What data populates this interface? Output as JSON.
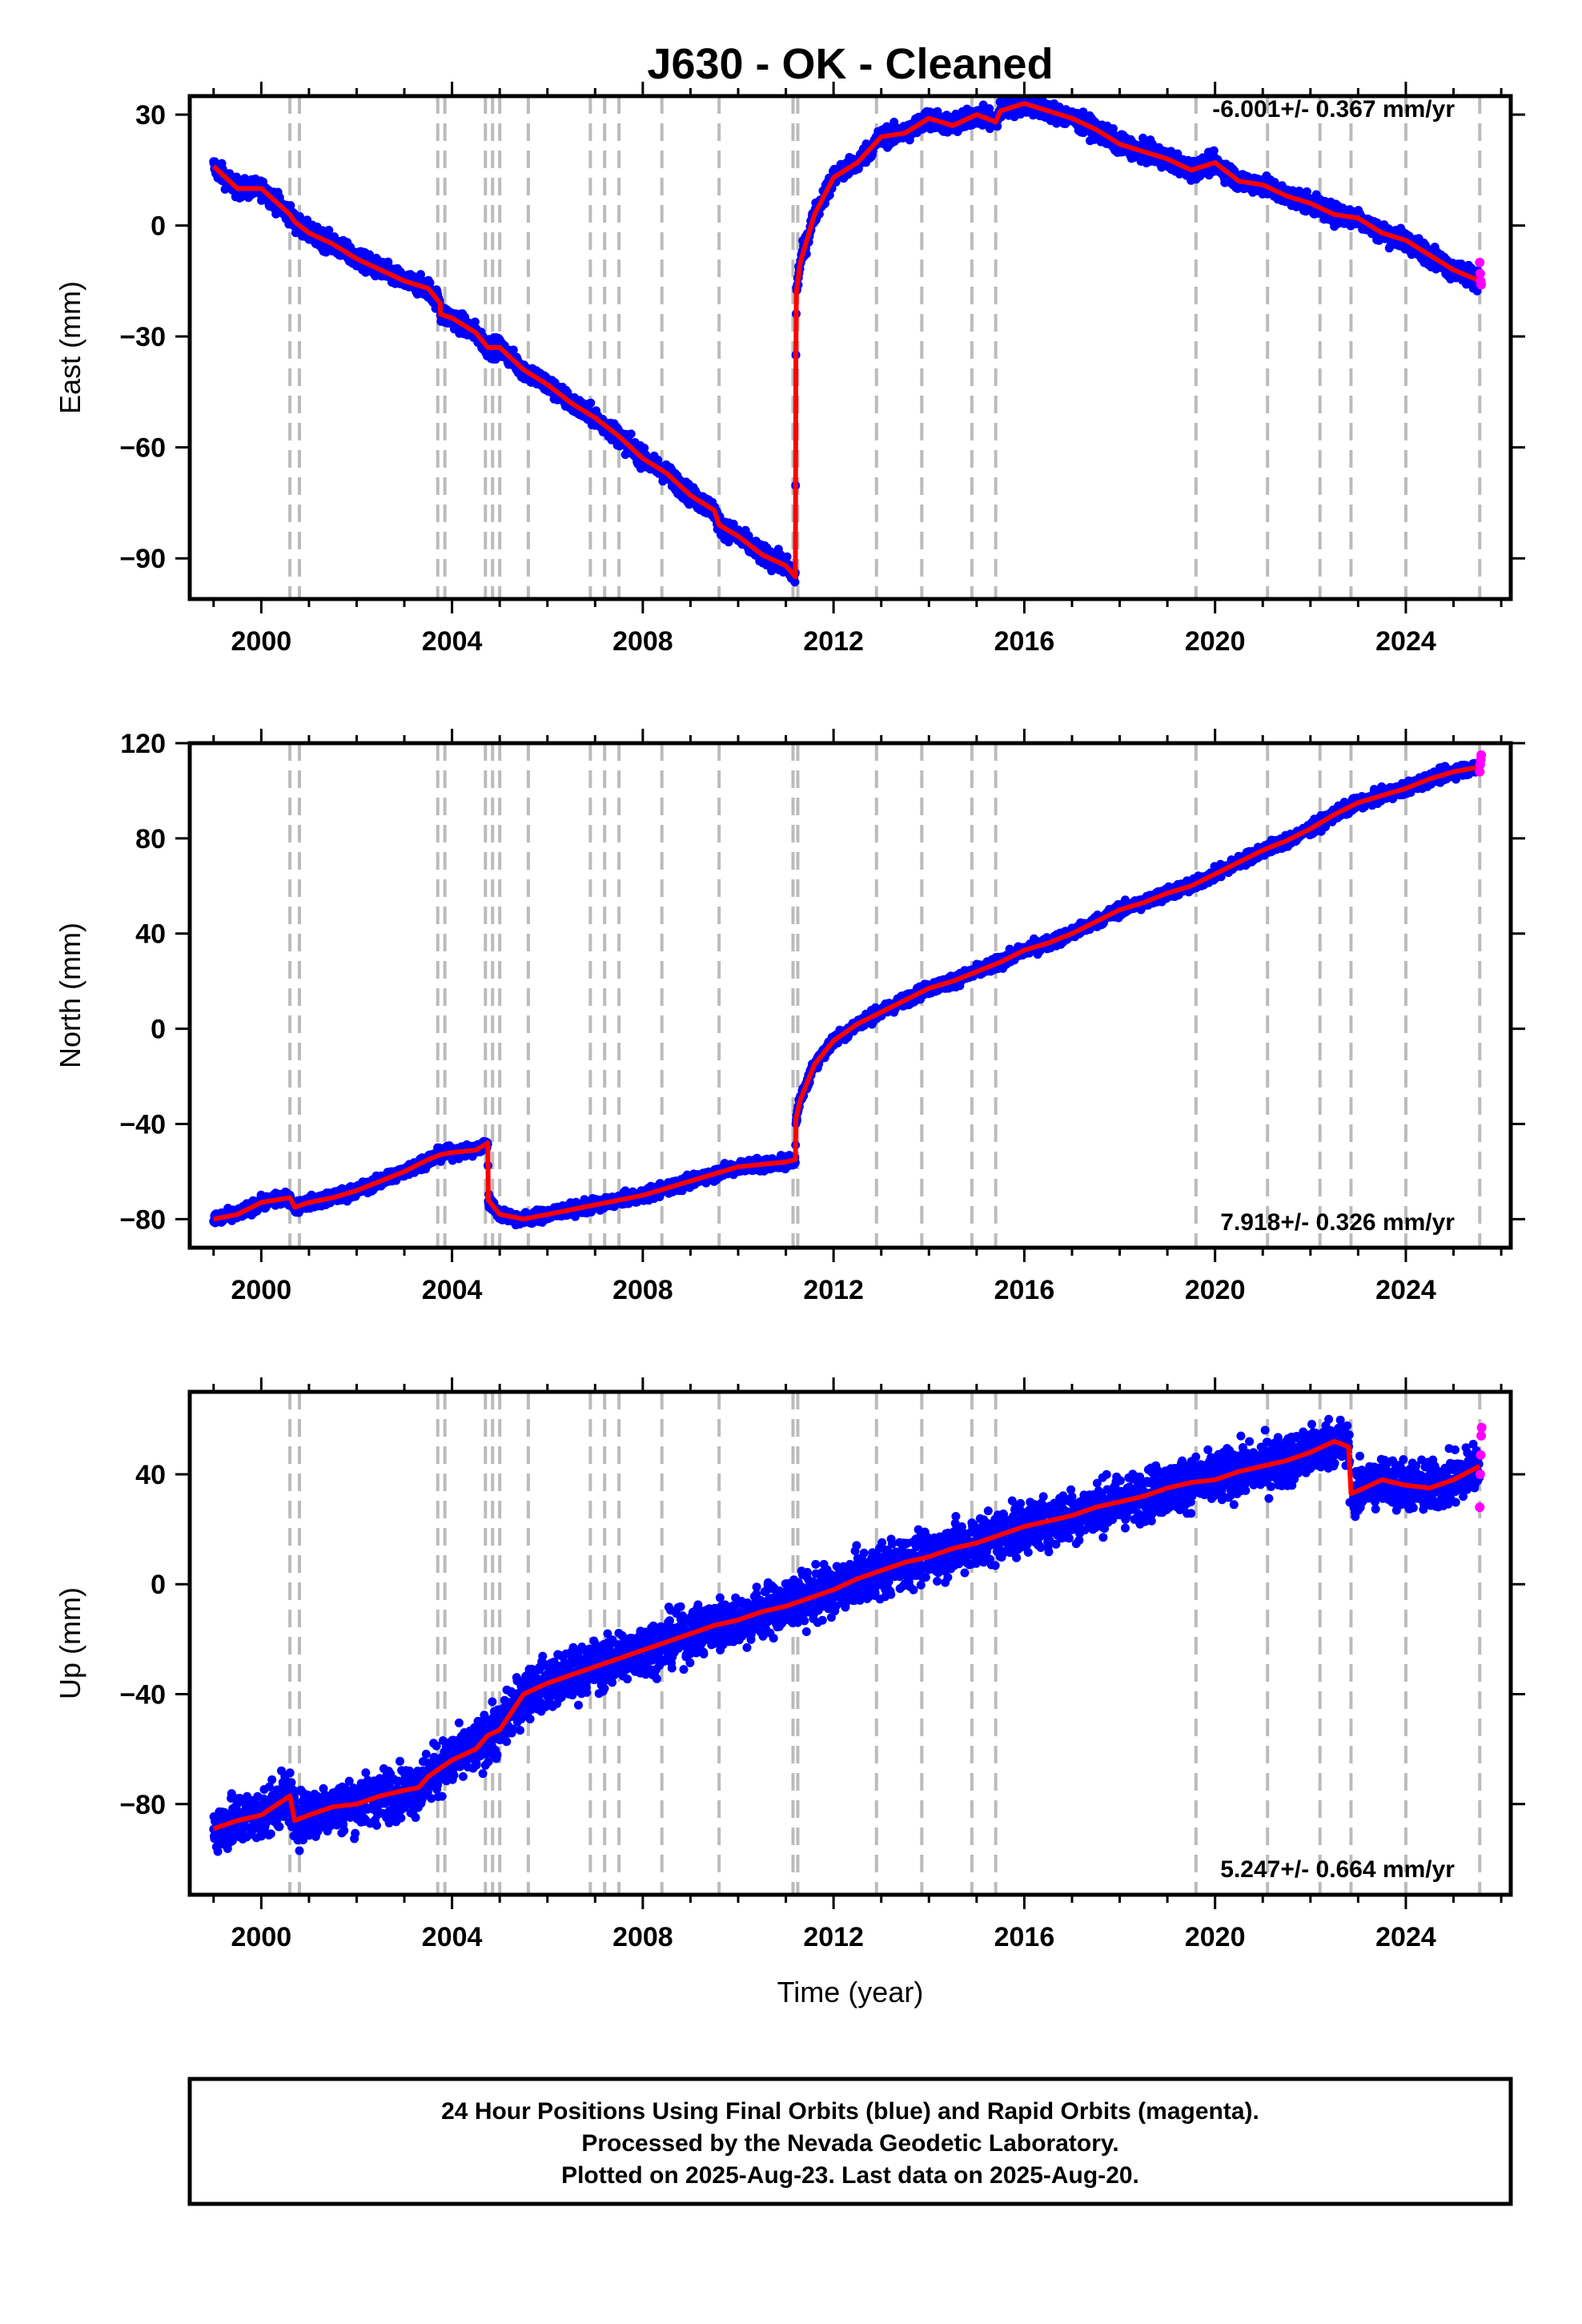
{
  "title": "J630  - OK - Cleaned",
  "xlabel": "Time (year)",
  "colors": {
    "final_orbits": "#0000ff",
    "rapid_orbits": "#ff00ff",
    "model": "#ff0000",
    "event_lines": "#bbbbbb"
  },
  "footer": {
    "line1": "24 Hour Positions Using Final Orbits (blue) and Rapid Orbits (magenta).",
    "line2": "Processed by the Nevada Geodetic Laboratory.",
    "line3": "Plotted on 2025-Aug-23. Last data on 2025-Aug-20."
  },
  "chart_data": [
    {
      "type": "scatter",
      "component": "East",
      "ylabel": "East (mm)",
      "rate_label": "-6.001+/- 0.367 mm/yr",
      "xlim": [
        1998.5,
        2026.2
      ],
      "ylim": [
        -101,
        35
      ],
      "xticks": [
        2000,
        2004,
        2008,
        2012,
        2016,
        2020,
        2024
      ],
      "yticks": [
        30,
        0,
        -30,
        -60,
        -90
      ],
      "event_lines": [
        2000.6,
        2000.8,
        2003.7,
        2003.85,
        2004.7,
        2004.85,
        2005.0,
        2005.6,
        2006.9,
        2007.2,
        2007.5,
        2008.4,
        2009.6,
        2011.15,
        2011.25,
        2012.9,
        2013.85,
        2014.9,
        2015.4,
        2019.6,
        2021.1,
        2022.2,
        2022.85,
        2024.0,
        2025.55
      ],
      "model": [
        [
          1999.0,
          16
        ],
        [
          1999.5,
          10
        ],
        [
          2000.0,
          10
        ],
        [
          2000.6,
          3
        ],
        [
          2000.7,
          1
        ],
        [
          2001.0,
          -2
        ],
        [
          2001.5,
          -5
        ],
        [
          2002.0,
          -9
        ],
        [
          2002.5,
          -12
        ],
        [
          2003.0,
          -15
        ],
        [
          2003.5,
          -17
        ],
        [
          2003.75,
          -21
        ],
        [
          2003.76,
          -24
        ],
        [
          2004.0,
          -25
        ],
        [
          2004.5,
          -29
        ],
        [
          2004.75,
          -33
        ],
        [
          2005.0,
          -33
        ],
        [
          2005.5,
          -39
        ],
        [
          2006.0,
          -43
        ],
        [
          2006.5,
          -48
        ],
        [
          2007.0,
          -52
        ],
        [
          2007.5,
          -57
        ],
        [
          2008.0,
          -63
        ],
        [
          2008.5,
          -67
        ],
        [
          2009.0,
          -73
        ],
        [
          2009.5,
          -77
        ],
        [
          2009.6,
          -81
        ],
        [
          2010.0,
          -84
        ],
        [
          2010.5,
          -89
        ],
        [
          2011.0,
          -92
        ],
        [
          2011.2,
          -95
        ],
        [
          2011.21,
          -35
        ],
        [
          2011.22,
          -18
        ],
        [
          2011.3,
          -10
        ],
        [
          2011.6,
          3
        ],
        [
          2012.0,
          13
        ],
        [
          2012.5,
          17
        ],
        [
          2013.0,
          24
        ],
        [
          2013.5,
          25
        ],
        [
          2014.0,
          29
        ],
        [
          2014.5,
          27
        ],
        [
          2015.0,
          30
        ],
        [
          2015.4,
          28
        ],
        [
          2015.5,
          31
        ],
        [
          2016.0,
          33
        ],
        [
          2016.5,
          31
        ],
        [
          2017.0,
          29
        ],
        [
          2017.5,
          26
        ],
        [
          2018.0,
          22
        ],
        [
          2018.5,
          20
        ],
        [
          2019.0,
          18
        ],
        [
          2019.5,
          15
        ],
        [
          2020.0,
          17
        ],
        [
          2020.5,
          12
        ],
        [
          2021.0,
          11
        ],
        [
          2021.5,
          8
        ],
        [
          2022.0,
          6
        ],
        [
          2022.5,
          3
        ],
        [
          2023.0,
          2
        ],
        [
          2023.5,
          -2
        ],
        [
          2024.0,
          -4
        ],
        [
          2024.5,
          -8
        ],
        [
          2025.0,
          -12
        ],
        [
          2025.55,
          -15
        ]
      ],
      "rapid": [
        [
          2025.55,
          -10
        ],
        [
          2025.56,
          -13
        ],
        [
          2025.57,
          -15
        ],
        [
          2025.58,
          -16
        ]
      ]
    },
    {
      "type": "scatter",
      "component": "North",
      "ylabel": "North (mm)",
      "rate_label": "7.918+/- 0.326 mm/yr",
      "xlim": [
        1998.5,
        2026.2
      ],
      "ylim": [
        -92,
        120
      ],
      "xticks": [
        2000,
        2004,
        2008,
        2012,
        2016,
        2020,
        2024
      ],
      "yticks": [
        120,
        80,
        40,
        0,
        -40,
        -80
      ],
      "event_lines": [
        2000.6,
        2000.8,
        2003.7,
        2003.85,
        2004.7,
        2004.85,
        2005.0,
        2005.6,
        2006.9,
        2007.2,
        2007.5,
        2008.4,
        2009.6,
        2011.15,
        2011.25,
        2012.9,
        2013.85,
        2014.9,
        2015.4,
        2019.6,
        2021.1,
        2022.2,
        2022.85,
        2024.0,
        2025.55
      ],
      "model": [
        [
          1999.0,
          -80
        ],
        [
          1999.5,
          -78
        ],
        [
          2000.0,
          -73
        ],
        [
          2000.6,
          -71
        ],
        [
          2000.7,
          -75
        ],
        [
          2001.0,
          -73
        ],
        [
          2001.5,
          -71
        ],
        [
          2002.0,
          -68
        ],
        [
          2002.5,
          -64
        ],
        [
          2003.0,
          -60
        ],
        [
          2003.5,
          -55
        ],
        [
          2003.75,
          -53
        ],
        [
          2004.0,
          -52
        ],
        [
          2004.5,
          -51
        ],
        [
          2004.75,
          -48
        ],
        [
          2004.76,
          -72
        ],
        [
          2005.0,
          -78
        ],
        [
          2005.5,
          -80
        ],
        [
          2006.0,
          -78
        ],
        [
          2006.5,
          -76
        ],
        [
          2007.0,
          -74
        ],
        [
          2007.5,
          -72
        ],
        [
          2008.0,
          -70
        ],
        [
          2008.5,
          -67
        ],
        [
          2009.0,
          -64
        ],
        [
          2009.5,
          -61
        ],
        [
          2010.0,
          -58
        ],
        [
          2010.5,
          -57
        ],
        [
          2011.0,
          -56
        ],
        [
          2011.2,
          -55
        ],
        [
          2011.21,
          -38
        ],
        [
          2011.3,
          -30
        ],
        [
          2011.6,
          -15
        ],
        [
          2012.0,
          -5
        ],
        [
          2012.5,
          2
        ],
        [
          2013.0,
          7
        ],
        [
          2013.5,
          12
        ],
        [
          2014.0,
          17
        ],
        [
          2014.5,
          20
        ],
        [
          2015.0,
          24
        ],
        [
          2015.5,
          28
        ],
        [
          2016.0,
          33
        ],
        [
          2016.5,
          36
        ],
        [
          2017.0,
          40
        ],
        [
          2017.5,
          45
        ],
        [
          2018.0,
          50
        ],
        [
          2018.5,
          53
        ],
        [
          2019.0,
          57
        ],
        [
          2019.5,
          60
        ],
        [
          2020.0,
          65
        ],
        [
          2020.5,
          70
        ],
        [
          2021.0,
          75
        ],
        [
          2021.5,
          79
        ],
        [
          2022.0,
          84
        ],
        [
          2022.5,
          90
        ],
        [
          2023.0,
          95
        ],
        [
          2023.5,
          98
        ],
        [
          2024.0,
          101
        ],
        [
          2024.5,
          105
        ],
        [
          2025.0,
          108
        ],
        [
          2025.55,
          110
        ]
      ],
      "rapid": [
        [
          2025.55,
          108
        ],
        [
          2025.56,
          111
        ],
        [
          2025.57,
          113
        ],
        [
          2025.58,
          115
        ]
      ]
    },
    {
      "type": "scatter",
      "component": "Up",
      "ylabel": "Up (mm)",
      "rate_label": "5.247+/- 0.664 mm/yr",
      "xlim": [
        1998.5,
        2026.2
      ],
      "ylim": [
        -113,
        70
      ],
      "xticks": [
        2000,
        2004,
        2008,
        2012,
        2016,
        2020,
        2024
      ],
      "yticks": [
        40,
        0,
        -40,
        -80
      ],
      "event_lines": [
        2000.6,
        2000.8,
        2003.7,
        2003.85,
        2004.7,
        2004.85,
        2005.0,
        2005.6,
        2006.9,
        2007.2,
        2007.5,
        2008.4,
        2009.6,
        2011.15,
        2011.25,
        2012.9,
        2013.85,
        2014.9,
        2015.4,
        2019.6,
        2021.1,
        2022.2,
        2022.85,
        2024.0,
        2025.55
      ],
      "model": [
        [
          1999.0,
          -89
        ],
        [
          1999.5,
          -86
        ],
        [
          2000.0,
          -84
        ],
        [
          2000.6,
          -77
        ],
        [
          2000.7,
          -86
        ],
        [
          2001.0,
          -84
        ],
        [
          2001.5,
          -81
        ],
        [
          2002.0,
          -80
        ],
        [
          2002.5,
          -77
        ],
        [
          2003.0,
          -75
        ],
        [
          2003.3,
          -74
        ],
        [
          2003.5,
          -70
        ],
        [
          2003.75,
          -67
        ],
        [
          2004.0,
          -64
        ],
        [
          2004.5,
          -60
        ],
        [
          2004.75,
          -55
        ],
        [
          2005.0,
          -53
        ],
        [
          2005.5,
          -40
        ],
        [
          2006.0,
          -36
        ],
        [
          2006.5,
          -33
        ],
        [
          2007.0,
          -30
        ],
        [
          2007.5,
          -27
        ],
        [
          2008.0,
          -24
        ],
        [
          2008.5,
          -21
        ],
        [
          2009.0,
          -18
        ],
        [
          2009.5,
          -15
        ],
        [
          2010.0,
          -13
        ],
        [
          2010.5,
          -10
        ],
        [
          2011.0,
          -8
        ],
        [
          2011.5,
          -5
        ],
        [
          2012.0,
          -2
        ],
        [
          2012.5,
          2
        ],
        [
          2013.0,
          5
        ],
        [
          2013.5,
          8
        ],
        [
          2014.0,
          10
        ],
        [
          2014.5,
          13
        ],
        [
          2015.0,
          15
        ],
        [
          2015.5,
          18
        ],
        [
          2016.0,
          21
        ],
        [
          2016.5,
          23
        ],
        [
          2017.0,
          25
        ],
        [
          2017.5,
          28
        ],
        [
          2018.0,
          30
        ],
        [
          2018.5,
          32
        ],
        [
          2019.0,
          35
        ],
        [
          2019.5,
          37
        ],
        [
          2020.0,
          38
        ],
        [
          2020.5,
          41
        ],
        [
          2021.0,
          43
        ],
        [
          2021.5,
          45
        ],
        [
          2022.0,
          48
        ],
        [
          2022.5,
          52
        ],
        [
          2022.8,
          50
        ],
        [
          2022.85,
          33
        ],
        [
          2023.0,
          34
        ],
        [
          2023.5,
          38
        ],
        [
          2024.0,
          36
        ],
        [
          2024.5,
          35
        ],
        [
          2025.0,
          38
        ],
        [
          2025.55,
          43
        ]
      ],
      "rapid": [
        [
          2025.55,
          28
        ],
        [
          2025.56,
          40
        ],
        [
          2025.57,
          47
        ],
        [
          2025.58,
          54
        ],
        [
          2025.59,
          57
        ]
      ]
    }
  ]
}
